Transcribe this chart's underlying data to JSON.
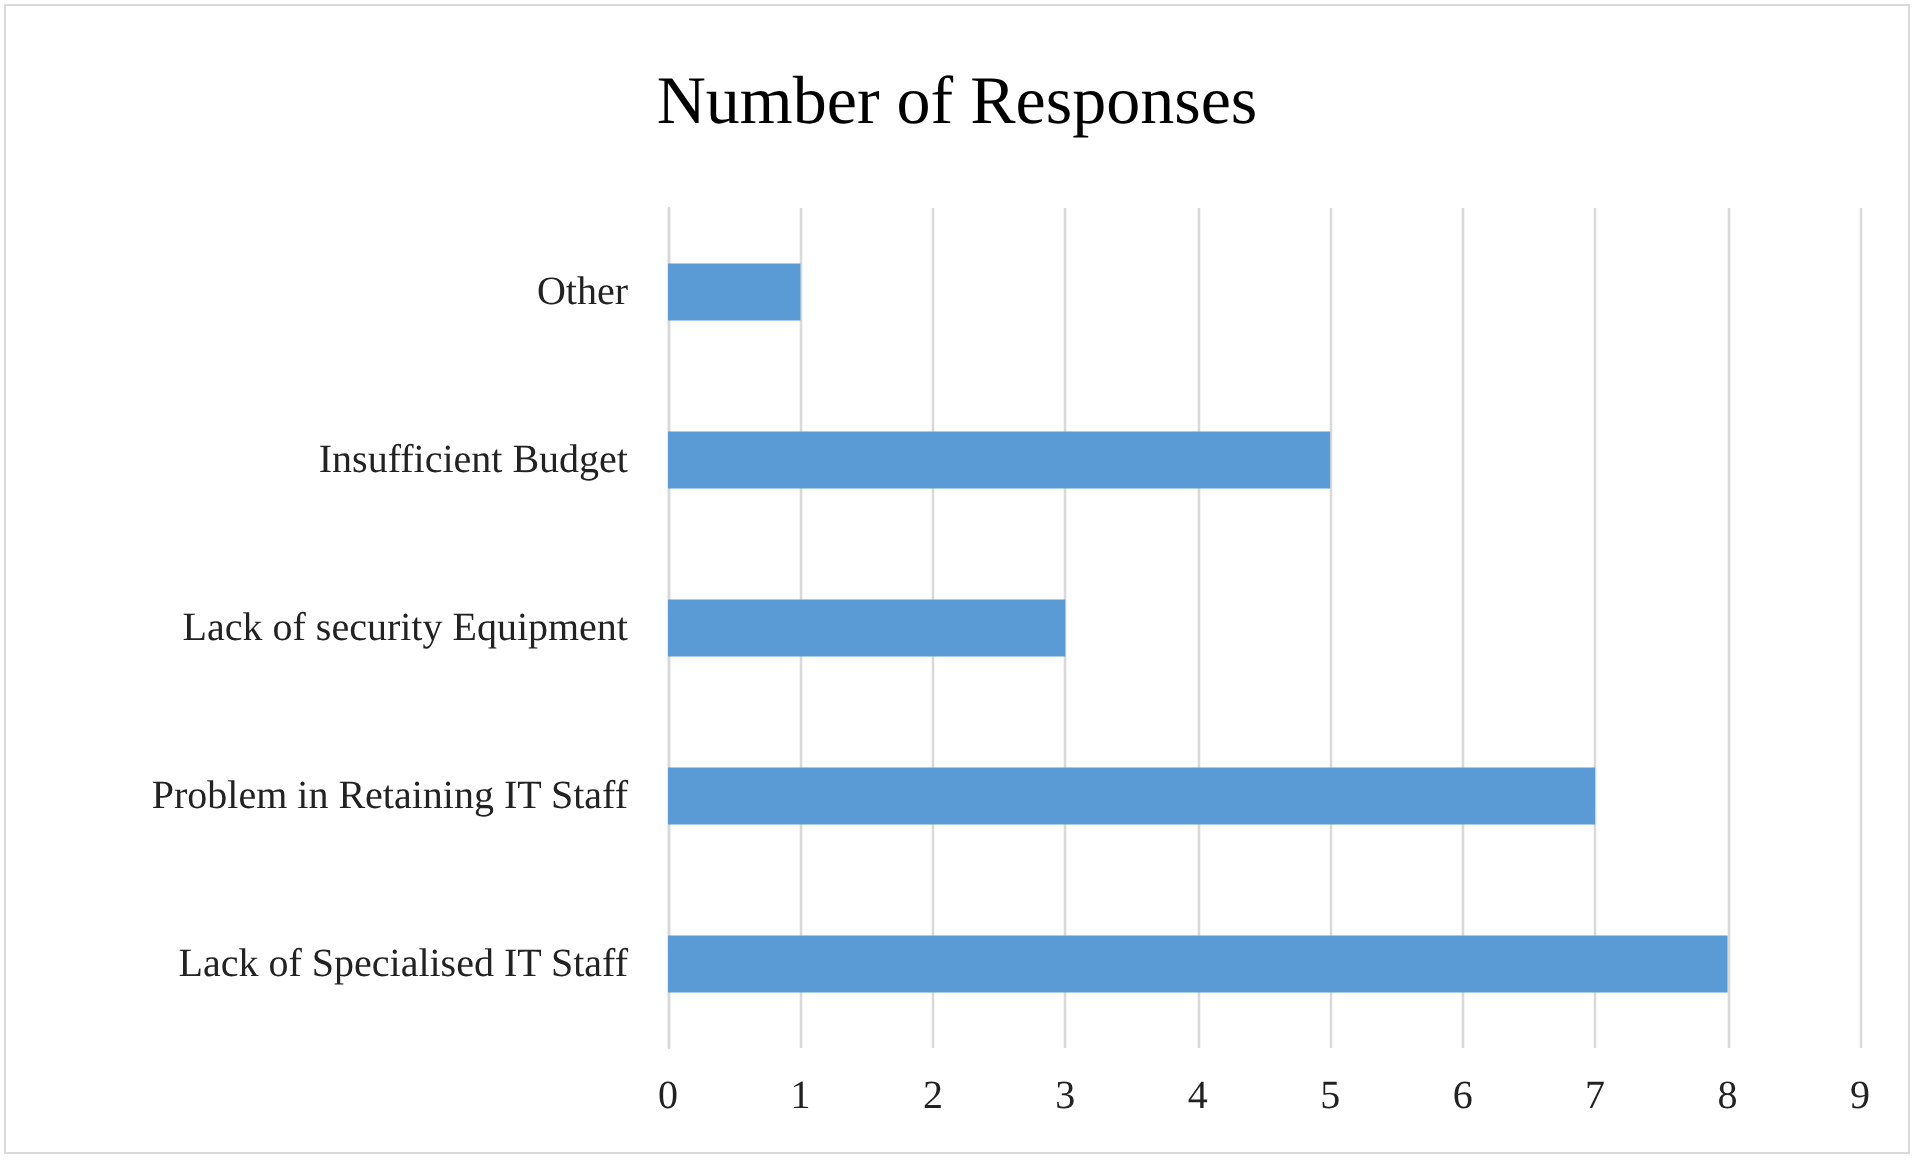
{
  "chart_data": {
    "type": "bar",
    "title": "Number of Responses",
    "orientation": "horizontal",
    "categories": [
      "Other",
      "Insufficient Budget",
      "Lack of security Equipment",
      "Problem in Retaining IT Staff",
      "Lack of Specialised IT Staff"
    ],
    "values": [
      1,
      5,
      3,
      7,
      8
    ],
    "color": "#5b9bd5",
    "xlim": [
      0,
      9
    ],
    "xticks": [
      0,
      1,
      2,
      3,
      4,
      5,
      6,
      7,
      8,
      9
    ],
    "grid": "x"
  }
}
